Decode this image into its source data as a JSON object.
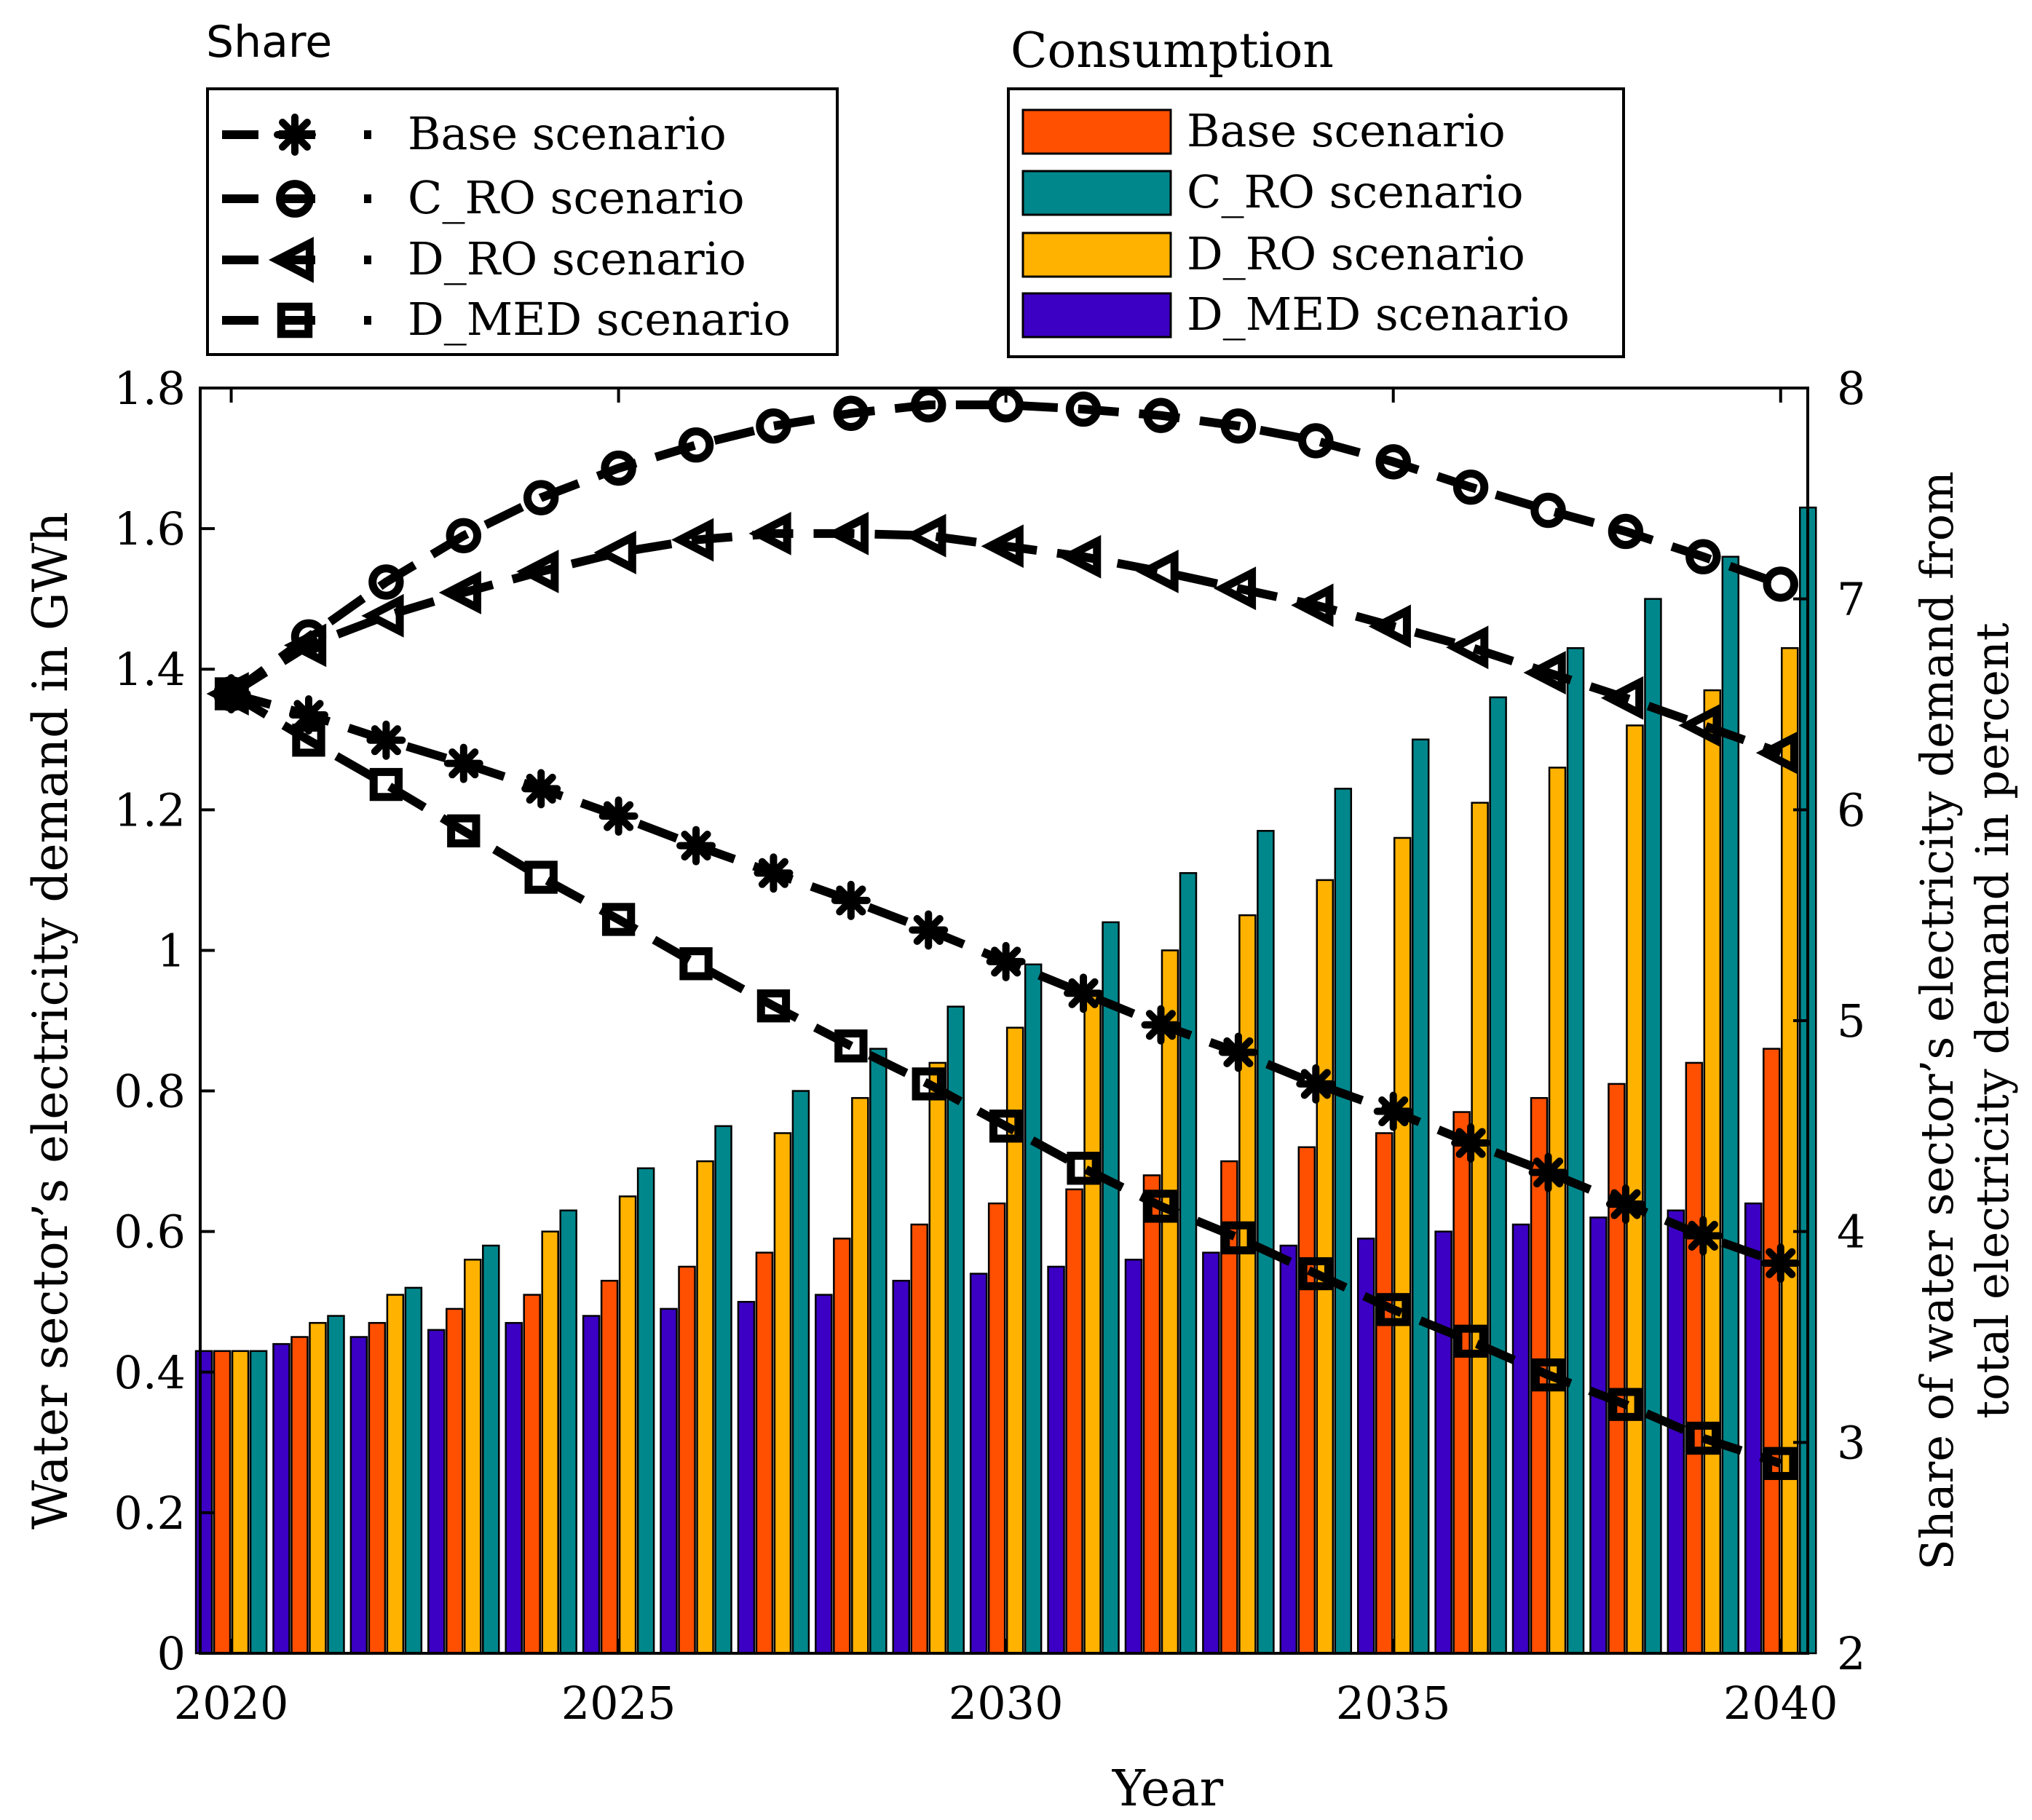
{
  "chart_data": {
    "type": "bar",
    "x": [
      2020,
      2021,
      2022,
      2023,
      2024,
      2025,
      2026,
      2027,
      2028,
      2029,
      2030,
      2031,
      2032,
      2033,
      2034,
      2035,
      2036,
      2037,
      2038,
      2039,
      2040
    ],
    "xlabel": "Year",
    "ylabel_left": "Water sector’s electricity demand in GWh",
    "ylabel_right_line1": "Share of water sector’s electricity demand from",
    "ylabel_right_line2": "total electricity demand in percent",
    "xticks": [
      2020,
      2025,
      2030,
      2035,
      2040
    ],
    "xtick_labels": [
      "2020",
      "2025",
      "2030",
      "2035",
      "2040"
    ],
    "xlim": [
      2019.6,
      2040.35
    ],
    "ylim_left": [
      0,
      1.8
    ],
    "yticks_left": [
      0,
      0.2,
      0.4,
      0.6,
      0.8,
      1,
      1.2,
      1.4,
      1.6,
      1.8
    ],
    "ytick_labels_left": [
      "0",
      "0.2",
      "0.4",
      "0.6",
      "0.8",
      "1",
      "1.2",
      "1.4",
      "1.6",
      "1.8"
    ],
    "ylim_right": [
      2,
      8
    ],
    "yticks_right": [
      2,
      3,
      4,
      5,
      6,
      7,
      8
    ],
    "ytick_labels_right": [
      "2",
      "3",
      "4",
      "5",
      "6",
      "7",
      "8"
    ],
    "bar_series": [
      {
        "name": "D_MED scenario",
        "color": "#3b00c4",
        "values": [
          0.43,
          0.44,
          0.45,
          0.46,
          0.47,
          0.48,
          0.49,
          0.5,
          0.51,
          0.53,
          0.54,
          0.55,
          0.56,
          0.57,
          0.58,
          0.59,
          0.6,
          0.61,
          0.62,
          0.63,
          0.64
        ]
      },
      {
        "name": "Base scenario",
        "color": "#ff4f00",
        "values": [
          0.43,
          0.45,
          0.47,
          0.49,
          0.51,
          0.53,
          0.55,
          0.57,
          0.59,
          0.61,
          0.64,
          0.66,
          0.68,
          0.7,
          0.72,
          0.74,
          0.77,
          0.79,
          0.81,
          0.84,
          0.86
        ]
      },
      {
        "name": "D_RO scenario",
        "color": "#ffb200",
        "values": [
          0.43,
          0.47,
          0.51,
          0.56,
          0.6,
          0.65,
          0.7,
          0.74,
          0.79,
          0.84,
          0.89,
          0.94,
          1.0,
          1.05,
          1.1,
          1.16,
          1.21,
          1.26,
          1.32,
          1.37,
          1.43
        ]
      },
      {
        "name": "C_RO scenario",
        "color": "#00878c",
        "values": [
          0.43,
          0.48,
          0.52,
          0.58,
          0.63,
          0.69,
          0.75,
          0.8,
          0.86,
          0.92,
          0.98,
          1.04,
          1.11,
          1.17,
          1.23,
          1.3,
          1.36,
          1.43,
          1.5,
          1.56,
          1.63
        ]
      }
    ],
    "line_series": [
      {
        "name": "Base scenario",
        "marker": "star",
        "values": [
          6.55,
          6.45,
          6.33,
          6.22,
          6.1,
          5.97,
          5.83,
          5.7,
          5.57,
          5.43,
          5.28,
          5.13,
          4.98,
          4.85,
          4.7,
          4.57,
          4.42,
          4.28,
          4.13,
          3.98,
          3.85
        ]
      },
      {
        "name": "C_RO scenario",
        "marker": "circle",
        "values": [
          6.55,
          6.82,
          7.08,
          7.3,
          7.48,
          7.62,
          7.73,
          7.82,
          7.88,
          7.92,
          7.92,
          7.9,
          7.87,
          7.82,
          7.75,
          7.65,
          7.53,
          7.42,
          7.32,
          7.2,
          7.07
        ]
      },
      {
        "name": "D_RO scenario",
        "marker": "triangle",
        "values": [
          6.55,
          6.78,
          6.92,
          7.03,
          7.13,
          7.22,
          7.28,
          7.31,
          7.31,
          7.3,
          7.25,
          7.2,
          7.13,
          7.05,
          6.97,
          6.87,
          6.77,
          6.65,
          6.53,
          6.4,
          6.27
        ]
      },
      {
        "name": "D_MED scenario",
        "marker": "square",
        "values": [
          6.55,
          6.33,
          6.12,
          5.9,
          5.68,
          5.48,
          5.27,
          5.07,
          4.88,
          4.7,
          4.5,
          4.3,
          4.12,
          3.97,
          3.8,
          3.63,
          3.48,
          3.32,
          3.18,
          3.02,
          2.9
        ]
      }
    ],
    "legend_share": {
      "title": "Share",
      "entries": [
        "Base scenario",
        "C_RO scenario",
        "D_RO scenario",
        "D_MED scenario"
      ]
    },
    "legend_consumption": {
      "title": "Consumption",
      "entries": [
        "Base scenario",
        "C_RO scenario",
        "D_RO scenario",
        "D_MED scenario"
      ]
    }
  }
}
